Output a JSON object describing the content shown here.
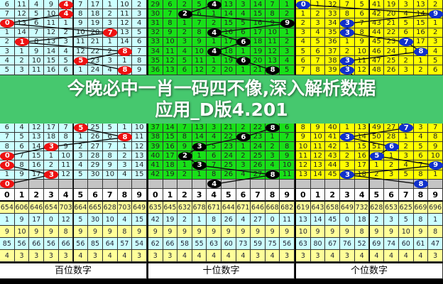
{
  "banner": {
    "line1": "今晚必中一肖一码四不像,深入解析数据",
    "line2": "应用_D版4.201"
  },
  "colors": {
    "stat_yellow": "#ffff99",
    "stat_cyan": "#ccffff",
    "gray_row": "#c4c4c4"
  },
  "panels": [
    {
      "label": "百位数字",
      "bg": "#ccffff",
      "ball_color": "#ee1111",
      "line_color": "#111111",
      "rows": [
        [
          "6",
          "11",
          "4",
          "9",
          "4",
          "7",
          "17",
          "1",
          "10",
          "2"
        ],
        [
          "7",
          "12",
          "5",
          "10",
          "4",
          "8",
          "18",
          "2",
          "11",
          "3"
        ],
        [
          "0",
          "13",
          "6",
          "11",
          "1",
          "9",
          "19",
          "3",
          "12",
          "4"
        ],
        [
          "1",
          "14",
          "7",
          "12",
          "2",
          "10",
          "20",
          "7",
          "13",
          "5"
        ],
        [
          "2",
          "1",
          "8",
          "13",
          "3",
          "11",
          "21",
          "1",
          "14",
          "6"
        ],
        [
          "3",
          "1",
          "9",
          "14",
          "4",
          "12",
          "22",
          "2",
          "8",
          "7"
        ],
        [
          "4",
          "2",
          "10",
          "15",
          "5",
          "5",
          "23",
          "3",
          "1",
          "8"
        ],
        [
          "5",
          "3",
          "11",
          "16",
          "6",
          "1",
          "24",
          "4",
          "8",
          "9"
        ],
        [
          "6",
          "4",
          "12",
          "17",
          "7",
          "5",
          "25",
          "5",
          "1",
          "10"
        ],
        [
          "7",
          "5",
          "13",
          "18",
          "8",
          "1",
          "26",
          "6",
          "8",
          "11"
        ],
        [
          "8",
          "6",
          "14",
          "3",
          "9",
          "2",
          "27",
          "7",
          "1",
          "12"
        ],
        [
          "0",
          "7",
          "15",
          "1",
          "10",
          "3",
          "28",
          "8",
          "2",
          "13"
        ],
        [
          "0",
          "8",
          "16",
          "2",
          "11",
          "4",
          "29",
          "9",
          "3",
          "14"
        ],
        [
          "1",
          "9",
          "17",
          "3",
          "12",
          "5",
          "30",
          "10",
          "4",
          "15"
        ]
      ],
      "balls": [
        4,
        4,
        0,
        7,
        1,
        8,
        5,
        8,
        5,
        8,
        3,
        0,
        0,
        3
      ],
      "current": {
        "col": 0,
        "value": "0"
      },
      "digits": [
        "0",
        "1",
        "2",
        "3",
        "4",
        "5",
        "6",
        "7",
        "8",
        "9"
      ],
      "stats": [
        [
          "654",
          "606",
          "646",
          "654",
          "703",
          "664",
          "665",
          "628",
          "703",
          "649"
        ],
        [
          "1",
          "9",
          "17",
          "0",
          "12",
          "5",
          "30",
          "10",
          "4",
          "15"
        ],
        [
          "9",
          "10",
          "9",
          "9",
          "8",
          "9",
          "9",
          "9",
          "8",
          "9"
        ],
        [
          "85",
          "56",
          "66",
          "56",
          "66",
          "56",
          "85",
          "64",
          "57",
          "54"
        ],
        [
          "4",
          "3",
          "3",
          "3",
          "3",
          "4",
          "3",
          "4",
          "4",
          "3"
        ]
      ]
    },
    {
      "label": "十位数字",
      "bg": "#18e018",
      "ball_color": "#000000",
      "line_color": "#111111",
      "rows": [
        [
          "29",
          "6",
          "2",
          "5",
          "4",
          "13",
          "3",
          "14",
          "7",
          "1"
        ],
        [
          "30",
          "7",
          "2",
          "6",
          "1",
          "14",
          "4",
          "15",
          "8",
          "2"
        ],
        [
          "31",
          "8",
          "1",
          "7",
          "2",
          "15",
          "5",
          "16",
          "9",
          "9"
        ],
        [
          "32",
          "9",
          "2",
          "8",
          "4",
          "16",
          "6",
          "17",
          "10",
          "1"
        ],
        [
          "33",
          "10",
          "3",
          "9",
          "1",
          "17",
          "6",
          "18",
          "11",
          "2"
        ],
        [
          "34",
          "11",
          "4",
          "10",
          "4",
          "18",
          "1",
          "19",
          "12",
          "3"
        ],
        [
          "35",
          "12",
          "5",
          "11",
          "1",
          "19",
          "6",
          "20",
          "13",
          "4"
        ],
        [
          "36",
          "13",
          "6",
          "12",
          "2",
          "20",
          "1",
          "21",
          "8",
          "5"
        ],
        [
          "37",
          "14",
          "7",
          "13",
          "3",
          "21",
          "2",
          "22",
          "8",
          "6"
        ],
        [
          "38",
          "15",
          "8",
          "14",
          "4",
          "22",
          "6",
          "23",
          "1",
          "7"
        ],
        [
          "39",
          "16",
          "9",
          "3",
          "5",
          "23",
          "1",
          "24",
          "2",
          "8"
        ],
        [
          "40",
          "17",
          "2",
          "1",
          "6",
          "24",
          "2",
          "25",
          "3",
          "9"
        ],
        [
          "41",
          "18",
          "1",
          "3",
          "7",
          "25",
          "3",
          "26",
          "4",
          "10"
        ],
        [
          "42",
          "19",
          "2",
          "1",
          "8",
          "26",
          "4",
          "27",
          "8",
          "11"
        ]
      ],
      "balls": [
        4,
        2,
        9,
        4,
        6,
        4,
        6,
        8,
        8,
        6,
        3,
        2,
        3,
        8
      ],
      "current": {
        "col": 4,
        "value": "4"
      },
      "digits": [
        "0",
        "1",
        "2",
        "3",
        "4",
        "5",
        "6",
        "7",
        "8",
        "9"
      ],
      "stats": [
        [
          "635",
          "645",
          "632",
          "678",
          "671",
          "644",
          "671",
          "646",
          "668",
          "682"
        ],
        [
          "42",
          "19",
          "2",
          "1",
          "8",
          "26",
          "4",
          "27",
          "0",
          "11"
        ],
        [
          "9",
          "9",
          "9",
          "9",
          "9",
          "9",
          "9",
          "9",
          "9",
          "9"
        ],
        [
          "62",
          "66",
          "58",
          "55",
          "63",
          "60",
          "73",
          "59",
          "75",
          "56"
        ],
        [
          "3",
          "3",
          "4",
          "4",
          "4",
          "4",
          "4",
          "3",
          "4",
          "3"
        ]
      ]
    },
    {
      "label": "个位数字",
      "bg": "#ffff00",
      "ball_color": "#1030cc",
      "line_color": "#111111",
      "rows": [
        [
          "0",
          "1",
          "32",
          "7",
          "5",
          "41",
          "19",
          "3",
          "13",
          "2"
        ],
        [
          "1",
          "2",
          "33",
          "8",
          "6",
          "42",
          "20",
          "4",
          "14",
          "9"
        ],
        [
          "2",
          "3",
          "34",
          "3",
          "7",
          "43",
          "21",
          "5",
          "15",
          "1"
        ],
        [
          "3",
          "4",
          "35",
          "3",
          "8",
          "44",
          "22",
          "6",
          "16",
          "2"
        ],
        [
          "4",
          "5",
          "36",
          "1",
          "9",
          "45",
          "23",
          "7",
          "17",
          "3"
        ],
        [
          "5",
          "6",
          "37",
          "2",
          "10",
          "46",
          "24",
          "1",
          "8",
          "4"
        ],
        [
          "6",
          "7",
          "38",
          "3",
          "11",
          "47",
          "25",
          "2",
          "1",
          "5"
        ],
        [
          "7",
          "8",
          "39",
          "3",
          "12",
          "48",
          "26",
          "3",
          "2",
          "6"
        ],
        [
          "8",
          "9",
          "40",
          "1",
          "13",
          "49",
          "27",
          "7",
          "3",
          "7"
        ],
        [
          "9",
          "10",
          "41",
          "3",
          "14",
          "50",
          "28",
          "1",
          "4",
          "8"
        ],
        [
          "10",
          "11",
          "42",
          "1",
          "15",
          "51",
          "6",
          "2",
          "5",
          "9"
        ],
        [
          "11",
          "12",
          "43",
          "2",
          "16",
          "5",
          "1",
          "3",
          "6",
          "10"
        ],
        [
          "12",
          "13",
          "44",
          "3",
          "17",
          "1",
          "2",
          "4",
          "7",
          "9"
        ],
        [
          "13",
          "14",
          "45",
          "3",
          "18",
          "2",
          "3",
          "5",
          "8",
          "1"
        ]
      ],
      "balls": [
        0,
        9,
        3,
        3,
        7,
        8,
        3,
        3,
        7,
        3,
        6,
        5,
        9,
        3
      ],
      "current": {
        "col": 8,
        "value": "8"
      },
      "digits": [
        "0",
        "1",
        "2",
        "3",
        "4",
        "5",
        "6",
        "7",
        "8",
        "9"
      ],
      "stats": [
        [
          "619",
          "643",
          "658",
          "649",
          "732",
          "628",
          "653",
          "625",
          "669",
          "696"
        ],
        [
          "13",
          "14",
          "45",
          "0",
          "18",
          "2",
          "3",
          "5",
          "8",
          "1"
        ],
        [
          "10",
          "9",
          "9",
          "9",
          "8",
          "9",
          "9",
          "10",
          "9",
          "8"
        ],
        [
          "63",
          "80",
          "67",
          "76",
          "52",
          "69",
          "74",
          "60",
          "61",
          "47"
        ],
        [
          "3",
          "3",
          "4",
          "3",
          "4",
          "4",
          "4",
          "4",
          "4",
          "3"
        ]
      ]
    }
  ]
}
